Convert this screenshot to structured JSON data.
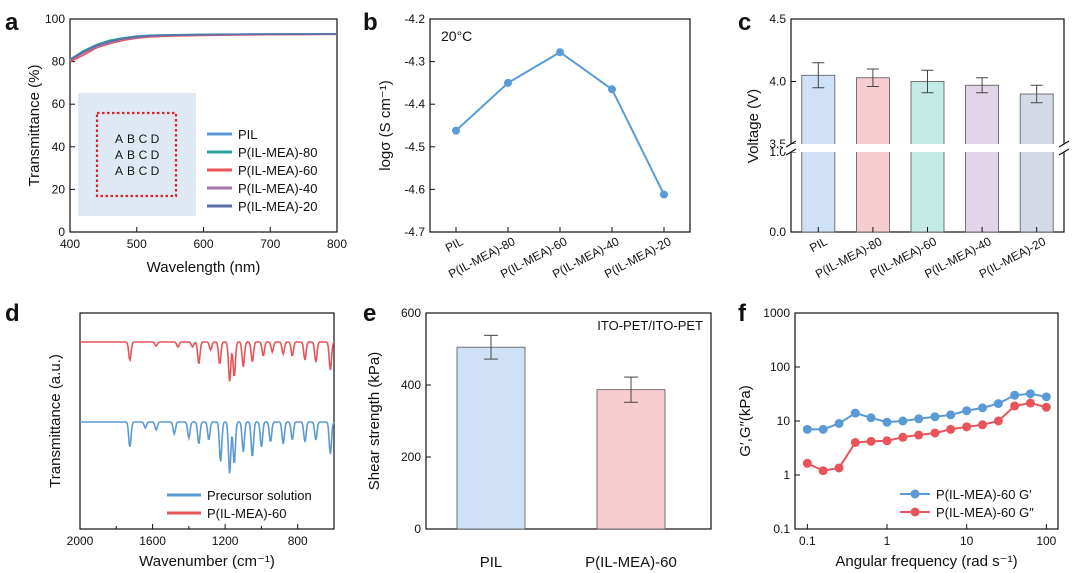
{
  "panels": {
    "a": {
      "letter": "a"
    },
    "b": {
      "letter": "b"
    },
    "c": {
      "letter": "c"
    },
    "d": {
      "letter": "d"
    },
    "e": {
      "letter": "e"
    },
    "f": {
      "letter": "f"
    }
  },
  "inset": {
    "rows": [
      "A B C D",
      "A B C D",
      "A B C D"
    ]
  },
  "colors": {
    "pil": "#5b9bd5",
    "il80": "#2aa198",
    "il60": "#e8545a",
    "il40": "#a673a8",
    "il20": "#5b6fa8",
    "bar_blue": "#cfe1f6",
    "bar_pink": "#f8cdd1",
    "bar_teal": "#c3ece6",
    "bar_purple": "#e3d5e8",
    "bar_gray": "#d4dbe6"
  },
  "chart_data": [
    {
      "panel": "a",
      "type": "line",
      "title": "",
      "xlabel": "Wavelength (nm)",
      "ylabel": "Transmittance (%)",
      "xlim": [
        400,
        800
      ],
      "ylim": [
        0,
        100
      ],
      "xticks": [
        400,
        500,
        600,
        700,
        800
      ],
      "yticks": [
        0,
        20,
        40,
        60,
        80,
        100
      ],
      "x": [
        400,
        420,
        440,
        460,
        480,
        500,
        520,
        550,
        600,
        650,
        700,
        750,
        800
      ],
      "series": [
        {
          "name": "PIL",
          "values": [
            81,
            85,
            88,
            90,
            91.2,
            92,
            92.4,
            92.6,
            92.8,
            92.9,
            93,
            93,
            93
          ]
        },
        {
          "name": "P(IL-MEA)-80",
          "values": [
            81,
            85,
            88,
            90,
            91,
            91.8,
            92.2,
            92.5,
            92.7,
            92.8,
            92.9,
            93,
            93
          ]
        },
        {
          "name": "P(IL-MEA)-60",
          "values": [
            80,
            83,
            86.5,
            88.5,
            90,
            91,
            91.6,
            92,
            92.3,
            92.5,
            92.6,
            92.7,
            92.8
          ]
        },
        {
          "name": "P(IL-MEA)-40",
          "values": [
            80.5,
            84,
            87,
            89,
            90.5,
            91.3,
            91.9,
            92.3,
            92.5,
            92.7,
            92.8,
            92.8,
            92.9
          ]
        },
        {
          "name": "P(IL-MEA)-20",
          "values": [
            81,
            84.5,
            87.5,
            89.5,
            90.8,
            91.6,
            92.1,
            92.4,
            92.6,
            92.8,
            92.9,
            92.9,
            93
          ]
        }
      ]
    },
    {
      "panel": "b",
      "type": "line",
      "annotation": "20°C",
      "xlabel": "",
      "ylabel": "logσ (S cm⁻¹)",
      "ylim": [
        -4.7,
        -4.2
      ],
      "yticks": [
        "-4.2",
        "-4.3",
        "-4.4",
        "-4.5",
        "-4.6",
        "-4.7"
      ],
      "categories": [
        "PIL",
        "P(IL-MEA)-80",
        "P(IL-MEA)-60",
        "P(IL-MEA)-40",
        "P(IL-MEA)-20"
      ],
      "values": [
        -4.462,
        -4.35,
        -4.278,
        -4.365,
        -4.612
      ]
    },
    {
      "panel": "c",
      "type": "bar",
      "xlabel": "",
      "ylabel": "Voltage (V)",
      "yticks_lower": [
        "0.0",
        "1.0"
      ],
      "yticks_upper": [
        "3.5",
        "4.0",
        "4.5"
      ],
      "categories": [
        "PIL",
        "P(IL-MEA)-80",
        "P(IL-MEA)-60",
        "P(IL-MEA)-40",
        "P(IL-MEA)-20"
      ],
      "values": [
        4.05,
        4.03,
        4.0,
        3.97,
        3.9
      ],
      "errors": [
        0.1,
        0.07,
        0.09,
        0.06,
        0.07
      ]
    },
    {
      "panel": "d",
      "type": "line",
      "xlabel": "Wavenumber (cm⁻¹)",
      "ylabel": "Transmittance (a.u.)",
      "xlim": [
        2000,
        600
      ],
      "xticks": [
        "2000",
        "1600",
        "1200",
        "800"
      ],
      "series": [
        {
          "name": "Precursor solution"
        },
        {
          "name": "P(IL-MEA)-60"
        }
      ]
    },
    {
      "panel": "e",
      "type": "bar",
      "annotation": "ITO-PET/ITO-PET",
      "xlabel": "",
      "ylabel": "Shear strength (kPa)",
      "ylim": [
        0,
        600
      ],
      "yticks": [
        "0",
        "200",
        "400",
        "600"
      ],
      "categories": [
        "PIL",
        "P(IL-MEA)-60"
      ],
      "values": [
        505,
        387
      ],
      "errors": [
        33,
        35
      ]
    },
    {
      "panel": "f",
      "type": "line",
      "xlabel": "Angular frequency (rad s⁻¹)",
      "ylabel": "G′,G″(kPa)",
      "xscale": "log",
      "yscale": "log",
      "xlim": [
        0.07,
        140
      ],
      "ylim": [
        0.1,
        1000
      ],
      "xticks": [
        "0.1",
        "1",
        "10",
        "100"
      ],
      "yticks": [
        "0.1",
        "1",
        "10",
        "100",
        "1000"
      ],
      "x": [
        0.1,
        0.158,
        0.25,
        0.4,
        0.63,
        1,
        1.58,
        2.5,
        4,
        6.3,
        10,
        15.8,
        25,
        40,
        63,
        100
      ],
      "series": [
        {
          "name": "P(IL-MEA)-60 G′",
          "values": [
            7,
            7,
            9,
            14,
            11.5,
            9.5,
            10,
            11,
            12,
            13,
            15.5,
            17.5,
            21,
            30,
            32,
            28
          ]
        },
        {
          "name": "P(IL-MEA)-60 G″",
          "values": [
            1.65,
            1.2,
            1.35,
            4,
            4.2,
            4.3,
            5,
            5.5,
            6,
            7,
            7.8,
            8.5,
            10,
            19,
            21.5,
            18
          ]
        }
      ]
    }
  ]
}
